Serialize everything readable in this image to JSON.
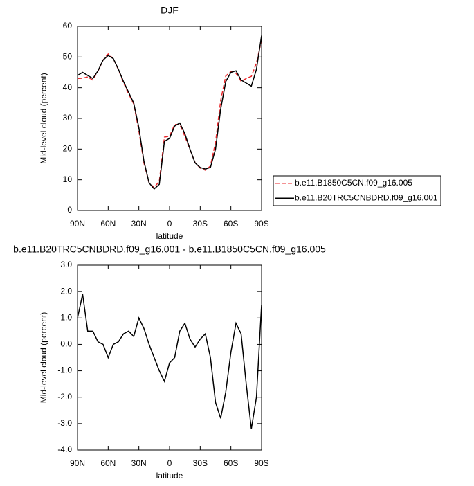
{
  "chart_data": [
    {
      "type": "line",
      "title": "DJF",
      "xlabel": "latitude",
      "ylabel": "Mid-level cloud (percent)",
      "x": [
        90,
        85,
        80,
        75,
        70,
        65,
        60,
        55,
        50,
        45,
        40,
        35,
        30,
        25,
        20,
        15,
        10,
        5,
        0,
        -5,
        -10,
        -15,
        -20,
        -25,
        -30,
        -35,
        -40,
        -45,
        -50,
        -55,
        -60,
        -65,
        -70,
        -75,
        -80,
        -85,
        -90
      ],
      "series": [
        {
          "name": "b.e11.B1850C5CN.f09_g16.005",
          "color": "#e8262a",
          "dash": true,
          "values": [
            43,
            43.1,
            43.5,
            42.5,
            45.4,
            49,
            51,
            49.5,
            45.9,
            41.6,
            38,
            34.7,
            26,
            15.4,
            9,
            7.5,
            9.5,
            23.9,
            24.2,
            28,
            28,
            24.2,
            19.8,
            15.6,
            13.8,
            13.1,
            14.5,
            22.2,
            35.8,
            43.8,
            45.3,
            44.7,
            42.1,
            43,
            43.7,
            48,
            55.5
          ]
        },
        {
          "name": "b.e11.B20TRC5CNBDRD.f09_g16.001",
          "color": "#000000",
          "dash": false,
          "values": [
            44,
            45,
            44,
            43,
            45.5,
            49,
            50.5,
            49.5,
            46,
            42,
            38.5,
            35,
            27,
            16,
            9,
            7,
            8.5,
            22.5,
            23.5,
            27.5,
            28.5,
            25,
            20,
            15.5,
            14,
            13.5,
            14,
            20,
            33,
            42,
            45,
            45.5,
            42.5,
            41.5,
            40.5,
            46,
            57
          ]
        }
      ],
      "xlim": [
        90,
        -90
      ],
      "xticks": [
        {
          "value": 90,
          "label": "90N"
        },
        {
          "value": 60,
          "label": "60N"
        },
        {
          "value": 30,
          "label": "30N"
        },
        0,
        {
          "value": -30,
          "label": "30S"
        },
        {
          "value": -60,
          "label": "60S"
        },
        {
          "value": -90,
          "label": "90S"
        }
      ],
      "ylim": [
        0,
        60
      ],
      "yticks": [
        0,
        10,
        20,
        30,
        40,
        50,
        60
      ],
      "legend": "right"
    },
    {
      "type": "line",
      "title": "b.e11.B20TRC5CNBDRD.f09_g16.001 - b.e11.B1850C5CN.f09_g16.005",
      "xlabel": "latitude",
      "ylabel": "Mid-level cloud (percent)",
      "x": [
        90,
        85,
        80,
        75,
        70,
        65,
        60,
        55,
        50,
        45,
        40,
        35,
        30,
        25,
        20,
        15,
        10,
        5,
        0,
        -5,
        -10,
        -15,
        -20,
        -25,
        -30,
        -35,
        -40,
        -45,
        -50,
        -55,
        -60,
        -65,
        -70,
        -75,
        -80,
        -85,
        -90
      ],
      "series": [
        {
          "color": "#000000",
          "dash": false,
          "values": [
            1.0,
            1.9,
            0.5,
            0.5,
            0.1,
            0.0,
            -0.5,
            0.0,
            0.1,
            0.4,
            0.5,
            0.3,
            1.0,
            0.6,
            0.0,
            -0.5,
            -1.0,
            -1.4,
            -0.7,
            -0.5,
            0.5,
            0.8,
            0.2,
            -0.1,
            0.2,
            0.4,
            -0.5,
            -2.2,
            -2.8,
            -1.8,
            -0.3,
            0.8,
            0.4,
            -1.5,
            -3.2,
            -2.0,
            1.5
          ]
        }
      ],
      "xlim": [
        90,
        -90
      ],
      "xticks": [
        {
          "value": 90,
          "label": "90N"
        },
        {
          "value": 60,
          "label": "60N"
        },
        {
          "value": 30,
          "label": "30N"
        },
        0,
        {
          "value": -30,
          "label": "30S"
        },
        {
          "value": -60,
          "label": "60S"
        },
        {
          "value": -90,
          "label": "90S"
        }
      ],
      "ylim": [
        -4,
        3
      ],
      "yticks": [
        {
          "value": -4,
          "label": "-4.0"
        },
        {
          "value": -3,
          "label": "-3.0"
        },
        {
          "value": -2,
          "label": "-2.0"
        },
        {
          "value": -1,
          "label": "-1.0"
        },
        {
          "value": 0,
          "label": "0.0"
        },
        {
          "value": 1,
          "label": "1.0"
        },
        {
          "value": 2,
          "label": "2.0"
        },
        {
          "value": 3,
          "label": "3.0"
        }
      ]
    }
  ]
}
